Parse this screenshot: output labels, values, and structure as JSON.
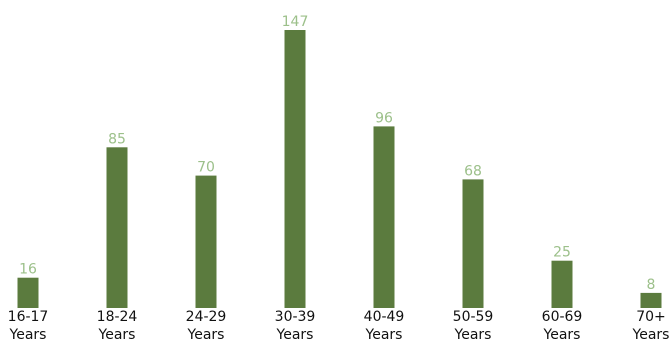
{
  "chart_data": {
    "type": "bar",
    "categories": [
      [
        "16-17",
        "Years"
      ],
      [
        "18-24",
        "Years"
      ],
      [
        "24-29",
        "Years"
      ],
      [
        "30-39",
        "Years"
      ],
      [
        "40-49",
        "Years"
      ],
      [
        "50-59",
        "Years"
      ],
      [
        "60-69",
        "Years"
      ],
      [
        "70+",
        "Years"
      ]
    ],
    "values": [
      16,
      85,
      70,
      147,
      96,
      68,
      25,
      8
    ],
    "title": "",
    "xlabel": "",
    "ylabel": "",
    "ylim": [
      0,
      147
    ],
    "grid": false,
    "legend": "none",
    "data_labels": true
  },
  "colors": {
    "bar": "#5b7b3e",
    "value_label": "#9cc08a",
    "category_label": "#111111",
    "background": "#ffffff"
  }
}
